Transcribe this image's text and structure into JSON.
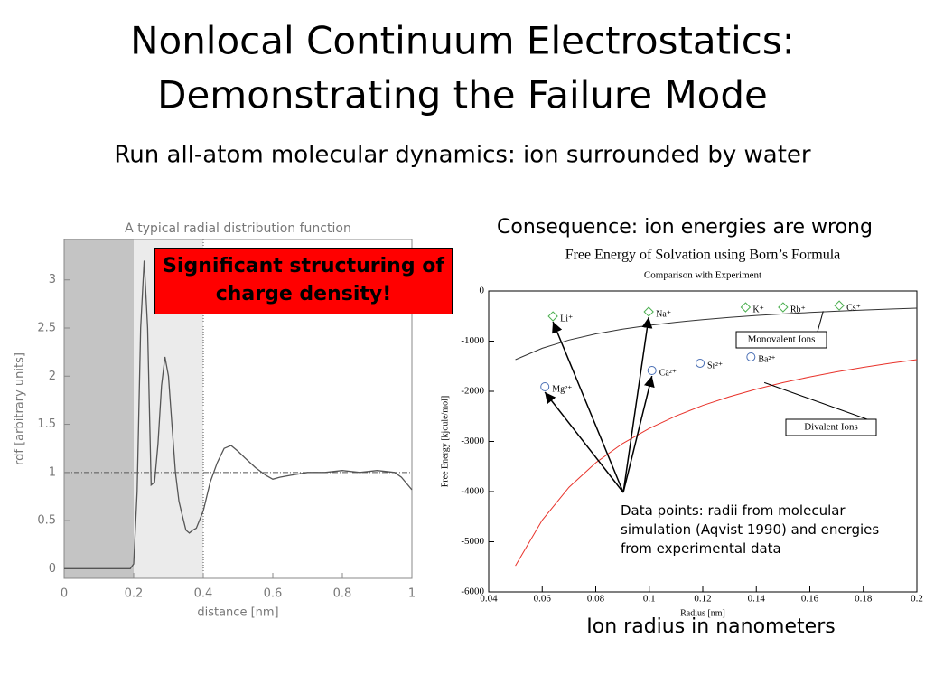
{
  "title": [
    "Nonlocal Continuum Electrostatics:",
    "Demonstrating the Failure Mode"
  ],
  "subtitle": "Run all-atom molecular dynamics: ion surrounded by water",
  "right_heading": "Consequence: ion energies are wrong",
  "right_footer": "Ion radius in nanometers",
  "chart_data": [
    {
      "type": "line",
      "title": "A typical radial distribution function",
      "x_label": "distance [nm]",
      "y_label": "rdf [arbitrary units]",
      "annotation": "Significant structuring of charge density!",
      "x": [
        0,
        0.1,
        0.19,
        0.2,
        0.21,
        0.22,
        0.23,
        0.24,
        0.25,
        0.26,
        0.27,
        0.28,
        0.29,
        0.3,
        0.31,
        0.32,
        0.33,
        0.34,
        0.35,
        0.36,
        0.37,
        0.38,
        0.4,
        0.42,
        0.44,
        0.46,
        0.48,
        0.5,
        0.52,
        0.55,
        0.58,
        0.6,
        0.62,
        0.65,
        0.7,
        0.75,
        0.8,
        0.85,
        0.9,
        0.95,
        0.97,
        1.0
      ],
      "values": [
        0,
        0,
        0,
        0.05,
        0.8,
        2.5,
        3.2,
        2.5,
        0.87,
        0.9,
        1.3,
        1.9,
        2.2,
        2.0,
        1.5,
        1.0,
        0.7,
        0.55,
        0.4,
        0.37,
        0.4,
        0.42,
        0.6,
        0.9,
        1.1,
        1.25,
        1.28,
        1.22,
        1.15,
        1.05,
        0.97,
        0.93,
        0.95,
        0.97,
        1.0,
        1.0,
        1.02,
        1.0,
        1.02,
        1.0,
        0.95,
        0.82
      ],
      "color": "#555555",
      "regions": [
        {
          "x": [
            0,
            0.2
          ],
          "color": "#c4c4c4"
        },
        {
          "x": [
            0.2,
            0.4
          ],
          "color": "#ebebeb"
        }
      ],
      "hlines": [
        1
      ],
      "vlines": [
        0.4
      ],
      "xlim": [
        0,
        1
      ],
      "ylim": [
        -0.1,
        3.42
      ],
      "xticks": [
        0,
        0.2,
        0.4,
        0.6,
        0.8,
        1
      ],
      "yticks": [
        0,
        0.5,
        1,
        1.5,
        2,
        2.5,
        3
      ]
    },
    {
      "type": "scatter",
      "title": "Free Energy of Solvation using Born’s Formula",
      "subtitle": "Comparison with Experiment",
      "x_label": "Radius [nm]",
      "y_label": "Free Energy [kjoule/mol]",
      "annotation": {
        "text": "Data points: radii from molecular simulation (Aqvist 1990) and energies from experimental data",
        "arrow_targets": [
          [
            2,
            0
          ],
          [
            2,
            1
          ],
          [
            3,
            0
          ],
          [
            3,
            1
          ]
        ]
      },
      "series": [
        {
          "name": "Monovalent Ions",
          "type": "line",
          "color": "#333333",
          "x": [
            0.05,
            0.06,
            0.07,
            0.08,
            0.09,
            0.1,
            0.11,
            0.12,
            0.13,
            0.14,
            0.15,
            0.16,
            0.17,
            0.18,
            0.19,
            0.2
          ],
          "values": [
            -1370,
            -1142,
            -979,
            -856,
            -761,
            -685,
            -623,
            -571,
            -527,
            -489,
            -457,
            -428,
            -403,
            -381,
            -361,
            -343
          ]
        },
        {
          "name": "Divalent Ions",
          "type": "line",
          "color": "#e8322a",
          "x": [
            0.05,
            0.06,
            0.07,
            0.08,
            0.09,
            0.1,
            0.11,
            0.12,
            0.13,
            0.14,
            0.15,
            0.16,
            0.17,
            0.18,
            0.19,
            0.2
          ],
          "values": [
            -5480,
            -4567,
            -3914,
            -3425,
            -3044,
            -2740,
            -2491,
            -2283,
            -2108,
            -1957,
            -1827,
            -1713,
            -1612,
            -1522,
            -1442,
            -1370
          ]
        },
        {
          "type": "points",
          "marker": "diamond",
          "color": "#4caf50",
          "labels": [
            "Li⁺",
            "Na⁺",
            "K⁺",
            "Rb⁺",
            "Cs⁺"
          ],
          "x": [
            0.064,
            0.0998,
            0.136,
            0.15,
            0.171
          ],
          "values": [
            -505,
            -414,
            -325,
            -325,
            -290
          ]
        },
        {
          "type": "points",
          "marker": "circle",
          "color": "#4a6fb5",
          "labels": [
            "Mg²⁺",
            "Ca²⁺",
            "Sr²⁺",
            "Ba²⁺"
          ],
          "x": [
            0.061,
            0.101,
            0.119,
            0.138
          ],
          "values": [
            -1910,
            -1586,
            -1441,
            -1315
          ]
        }
      ],
      "xlim": [
        0.04,
        0.2
      ],
      "ylim": [
        -6000,
        0
      ],
      "xticks": [
        0.04,
        0.06,
        0.08,
        0.1,
        0.12,
        0.14,
        0.16,
        0.18,
        0.2
      ],
      "yticks": [
        0,
        -1000,
        -2000,
        -3000,
        -4000,
        -5000,
        -6000
      ]
    }
  ]
}
